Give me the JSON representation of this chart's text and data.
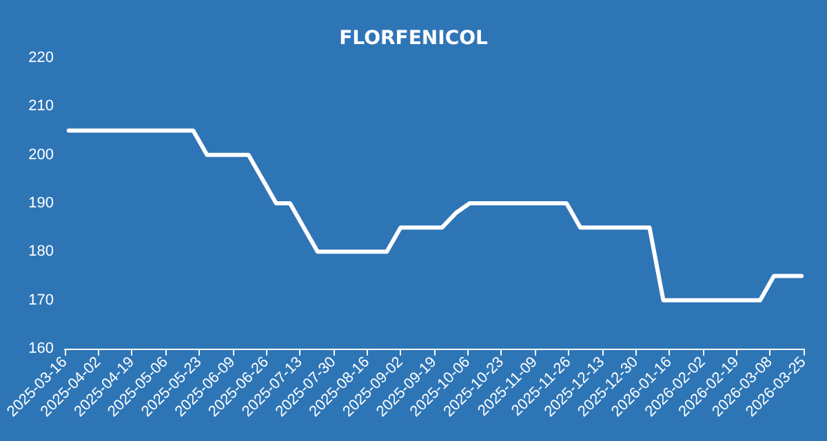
{
  "chart_data": {
    "type": "line",
    "title": "FLORFENICOL",
    "x": [
      "2025-03-18",
      "2025-03-25",
      "2025-04-01",
      "2025-04-08",
      "2025-04-15",
      "2025-04-22",
      "2025-04-29",
      "2025-05-06",
      "2025-05-13",
      "2025-05-20",
      "2025-05-27",
      "2025-06-03",
      "2025-06-10",
      "2025-06-17",
      "2025-06-24",
      "2025-07-01",
      "2025-07-08",
      "2025-07-15",
      "2025-07-22",
      "2025-07-29",
      "2025-08-05",
      "2025-08-12",
      "2025-08-19",
      "2025-08-26",
      "2025-09-02",
      "2025-09-09",
      "2025-09-16",
      "2025-09-23",
      "2025-09-30",
      "2025-10-07",
      "2025-10-14",
      "2025-10-21",
      "2025-10-28",
      "2025-11-04",
      "2025-11-11",
      "2025-11-18",
      "2025-11-25",
      "2025-12-02",
      "2025-12-09",
      "2025-12-16",
      "2025-12-23",
      "2025-12-30",
      "2026-01-06",
      "2026-01-13",
      "2026-01-20",
      "2026-01-27",
      "2026-02-03",
      "2026-02-10",
      "2026-02-17",
      "2026-02-24",
      "2026-03-03",
      "2026-03-10",
      "2026-03-17",
      "2026-03-24"
    ],
    "series": [
      {
        "color": "#ffffff",
        "values": [
          205,
          205,
          205,
          205,
          205,
          205,
          205,
          205,
          205,
          205,
          200,
          200,
          200,
          200,
          195,
          190,
          190,
          185,
          180,
          180,
          180,
          180,
          180,
          180,
          185,
          185,
          185,
          185,
          188,
          190,
          190,
          190,
          190,
          190,
          190,
          190,
          190,
          185,
          185,
          185,
          185,
          185,
          185,
          170,
          170,
          170,
          170,
          170,
          170,
          170,
          170,
          175,
          175,
          175
        ]
      }
    ],
    "xlim": [
      "2025-03-16",
      "2026-03-25"
    ],
    "xticks": [
      "2025-03-16",
      "2025-04-02",
      "2025-04-19",
      "2025-05-06",
      "2025-05-23",
      "2025-06-09",
      "2025-06-26",
      "2025-07-13",
      "2025-07-30",
      "2025-08-16",
      "2025-09-02",
      "2025-09-19",
      "2025-10-06",
      "2025-10-23",
      "2025-11-09",
      "2025-11-26",
      "2025-12-13",
      "2025-12-30",
      "2026-01-16",
      "2026-02-02",
      "2026-02-19",
      "2026-03-08",
      "2026-03-25"
    ],
    "ylim": [
      160,
      220
    ],
    "yticks": [
      160,
      170,
      180,
      190,
      200,
      210,
      220
    ],
    "grid": false,
    "marker": "none",
    "line_style": "solid"
  }
}
